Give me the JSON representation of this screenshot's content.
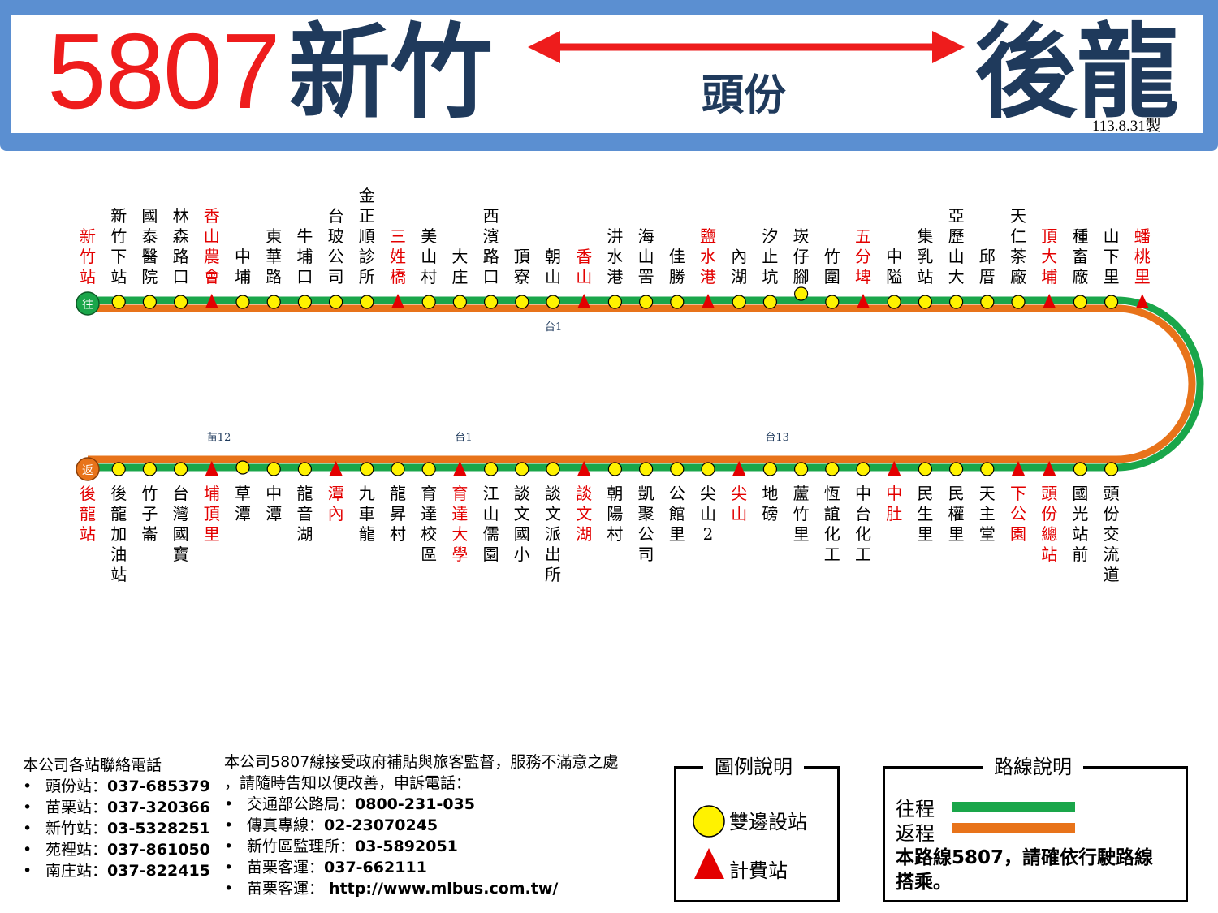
{
  "header": {
    "route_number": "5807",
    "origin": "新竹",
    "destination": "後龍",
    "via": "頭份",
    "made_date": "113.8.31製"
  },
  "colors": {
    "outbound": "#1aa64a",
    "return": "#e8731a",
    "fare_stop": "#e30000",
    "both_side_stop": "#fff200",
    "title_red": "#ee1c1c",
    "title_navy": "#1f3a5c",
    "header_blue": "#5b8fd1"
  },
  "outbound": {
    "start_badge": "往",
    "stops": [
      {
        "name": "新竹站",
        "type": "terminal",
        "red": true
      },
      {
        "name": "新竹下站",
        "type": "both"
      },
      {
        "name": "國泰醫院",
        "type": "both"
      },
      {
        "name": "林森路口",
        "type": "both"
      },
      {
        "name": "香山農會",
        "type": "fare",
        "red": true
      },
      {
        "name": "中埔",
        "type": "both"
      },
      {
        "name": "東華路",
        "type": "both"
      },
      {
        "name": "牛埔口",
        "type": "both"
      },
      {
        "name": "台玻公司",
        "type": "both"
      },
      {
        "name": "金正順診所",
        "type": "both"
      },
      {
        "name": "三姓橋",
        "type": "fare",
        "red": true
      },
      {
        "name": "美山村",
        "type": "both"
      },
      {
        "name": "大庄",
        "type": "both"
      },
      {
        "name": "西濱路口",
        "type": "both"
      },
      {
        "name": "頂寮",
        "type": "both"
      },
      {
        "name": "朝山",
        "type": "both"
      },
      {
        "name": "香山",
        "type": "fare",
        "red": true
      },
      {
        "name": "汫水港",
        "type": "both"
      },
      {
        "name": "海山罟",
        "type": "both"
      },
      {
        "name": "佳勝",
        "type": "both"
      },
      {
        "name": "鹽水港",
        "type": "fare",
        "red": true
      },
      {
        "name": "內湖",
        "type": "both"
      },
      {
        "name": "汐止坑",
        "type": "both"
      },
      {
        "name": "崁仔腳",
        "type": "both",
        "offset": true
      },
      {
        "name": "竹圍",
        "type": "both"
      },
      {
        "name": "五分埤",
        "type": "fare",
        "red": true
      },
      {
        "name": "中隘",
        "type": "both"
      },
      {
        "name": "集乳站",
        "type": "both"
      },
      {
        "name": "亞歷山大",
        "type": "both"
      },
      {
        "name": "邱厝",
        "type": "both"
      },
      {
        "name": "天仁茶廠",
        "type": "both"
      },
      {
        "name": "頂大埔",
        "type": "fare",
        "red": true
      },
      {
        "name": "種畜廠",
        "type": "both"
      },
      {
        "name": "山下里",
        "type": "both"
      },
      {
        "name": "蟠桃里",
        "type": "fare",
        "red": true
      }
    ]
  },
  "return": {
    "start_badge": "返",
    "stops": [
      {
        "name": "後龍站",
        "type": "terminal",
        "red": true
      },
      {
        "name": "後龍加油站",
        "type": "both"
      },
      {
        "name": "竹子崙",
        "type": "both"
      },
      {
        "name": "台灣國寶",
        "type": "both"
      },
      {
        "name": "埔頂里",
        "type": "fare",
        "red": true
      },
      {
        "name": "草潭",
        "type": "both",
        "offset": true
      },
      {
        "name": "中潭",
        "type": "both"
      },
      {
        "name": "龍音湖",
        "type": "both"
      },
      {
        "name": "潭內",
        "type": "fare",
        "red": true
      },
      {
        "name": "九車龍",
        "type": "both"
      },
      {
        "name": "龍昇村",
        "type": "both"
      },
      {
        "name": "育達校區",
        "type": "both"
      },
      {
        "name": "育達大學",
        "type": "fare",
        "red": true
      },
      {
        "name": "江山儒園",
        "type": "both"
      },
      {
        "name": "談文國小",
        "type": "both"
      },
      {
        "name": "談文派出所",
        "type": "both"
      },
      {
        "name": "談文湖",
        "type": "fare",
        "red": true
      },
      {
        "name": "朝陽村",
        "type": "both"
      },
      {
        "name": "凱聚公司",
        "type": "both"
      },
      {
        "name": "公館里",
        "type": "both"
      },
      {
        "name": "尖山2",
        "type": "both"
      },
      {
        "name": "尖山",
        "type": "fare",
        "red": true
      },
      {
        "name": "地磅",
        "type": "both"
      },
      {
        "name": "蘆竹里",
        "type": "both"
      },
      {
        "name": "恆誼化工",
        "type": "both"
      },
      {
        "name": "中台化工",
        "type": "both"
      },
      {
        "name": "中肚",
        "type": "fare",
        "red": true
      },
      {
        "name": "民生里",
        "type": "both"
      },
      {
        "name": "民權里",
        "type": "both"
      },
      {
        "name": "天主堂",
        "type": "both"
      },
      {
        "name": "下公園",
        "type": "fare",
        "red": true
      },
      {
        "name": "頭份總站",
        "type": "fare",
        "red": true
      },
      {
        "name": "國光站前",
        "type": "both"
      },
      {
        "name": "頭份交流道",
        "type": "both"
      }
    ]
  },
  "road_labels": {
    "outbound": [
      {
        "label": "台1",
        "after_stop": 15
      }
    ],
    "return": [
      {
        "label": "苗12",
        "after_stop": 4
      },
      {
        "label": "台1",
        "after_stop": 12
      },
      {
        "label": "台13",
        "after_stop": 22
      }
    ]
  },
  "footer": {
    "contacts_title": "本公司各站聯絡電話",
    "contacts": [
      {
        "label": "頭份站：",
        "value": "037-685379"
      },
      {
        "label": "苗栗站：",
        "value": "037-320366"
      },
      {
        "label": "新竹站：",
        "value": "03-5328251"
      },
      {
        "label": "苑裡站：",
        "value": "037-861050"
      },
      {
        "label": "南庄站：",
        "value": "037-822415"
      }
    ],
    "notice_line1": "本公司5807線接受政府補貼與旅客監督，服務不滿意之處",
    "notice_line2": "，請隨時告知以便改善，申訴電話：",
    "complaints": [
      {
        "label": "交通部公路局：",
        "value": "0800-231-035"
      },
      {
        "label": "傳真專線：",
        "value": "02-23070245"
      },
      {
        "label": "新竹區監理所：",
        "value": "03-5892051"
      },
      {
        "label": "苗栗客運：",
        "value": "037-662111"
      },
      {
        "label": "苗栗客運： ",
        "value": "http://www.mlbus.com.tw/"
      }
    ],
    "bullet": "•"
  },
  "legend": {
    "title": "圖例說明",
    "both_side_label": "雙邊設站",
    "fare_label": "計費站"
  },
  "route_legend": {
    "title": "路線說明",
    "outbound_label": "往程",
    "return_label": "返程",
    "note_line1": "本路線5807，請確依行駛路線",
    "note_line2": "搭乘。"
  }
}
